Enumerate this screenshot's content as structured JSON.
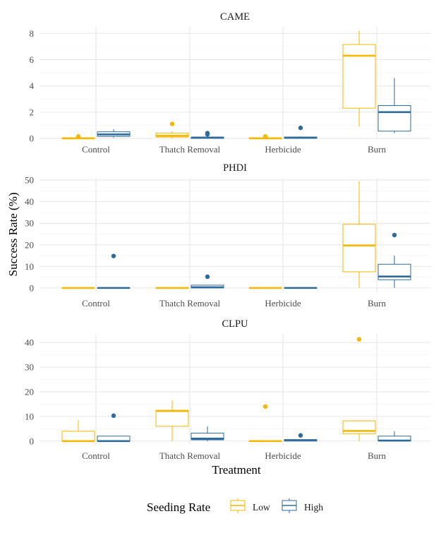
{
  "colors": {
    "low": "#F5B800",
    "high": "#2F6A99"
  },
  "axes": {
    "ylabel": "Success Rate (%)",
    "xlabel": "Treatment"
  },
  "legend": {
    "title": "Seeding Rate",
    "items": [
      {
        "key": "low",
        "label": "Low"
      },
      {
        "key": "high",
        "label": "High"
      }
    ]
  },
  "chart_data": [
    {
      "type": "boxplot",
      "title": "CAME",
      "categories": [
        "Control",
        "Thatch Removal",
        "Herbicide",
        "Burn"
      ],
      "ylim": [
        0,
        8.5
      ],
      "yticks": [
        0,
        2,
        4,
        6,
        8
      ],
      "grid": true,
      "series": [
        {
          "name": "Low",
          "boxes": [
            {
              "min": 0,
              "q1": 0,
              "median": 0,
              "q3": 0.05,
              "max": 0.05,
              "outliers": [
                0.15
              ]
            },
            {
              "min": 0,
              "q1": 0.1,
              "median": 0.2,
              "q3": 0.4,
              "max": 0.55,
              "outliers": [
                1.1
              ]
            },
            {
              "min": 0,
              "q1": 0,
              "median": 0,
              "q3": 0.05,
              "max": 0.05,
              "outliers": [
                0.15
              ]
            },
            {
              "min": 0.9,
              "q1": 2.3,
              "median": 6.3,
              "q3": 7.15,
              "max": 8.2,
              "outliers": []
            }
          ]
        },
        {
          "name": "High",
          "boxes": [
            {
              "min": 0.05,
              "q1": 0.15,
              "median": 0.3,
              "q3": 0.5,
              "max": 0.7,
              "outliers": []
            },
            {
              "min": 0,
              "q1": 0,
              "median": 0.05,
              "q3": 0.1,
              "max": 0.15,
              "outliers": [
                0.4,
                0.3
              ]
            },
            {
              "min": 0,
              "q1": 0,
              "median": 0.05,
              "q3": 0.1,
              "max": 0.15,
              "outliers": [
                0.8
              ]
            },
            {
              "min": 0.4,
              "q1": 0.55,
              "median": 2.0,
              "q3": 2.5,
              "max": 4.6,
              "outliers": []
            }
          ]
        }
      ]
    },
    {
      "type": "boxplot",
      "title": "PHDI",
      "categories": [
        "Control",
        "Thatch Removal",
        "Herbicide",
        "Burn"
      ],
      "ylim": [
        -2,
        51
      ],
      "yticks": [
        0,
        10,
        20,
        30,
        40,
        50
      ],
      "grid": true,
      "series": [
        {
          "name": "Low",
          "boxes": [
            {
              "min": 0,
              "q1": 0,
              "median": 0,
              "q3": 0,
              "max": 0,
              "outliers": []
            },
            {
              "min": 0,
              "q1": 0,
              "median": 0,
              "q3": 0,
              "max": 0,
              "outliers": []
            },
            {
              "min": 0,
              "q1": 0,
              "median": 0,
              "q3": 0,
              "max": 0,
              "outliers": []
            },
            {
              "min": 0,
              "q1": 7.5,
              "median": 19.7,
              "q3": 29.5,
              "max": 49.5,
              "outliers": []
            }
          ]
        },
        {
          "name": "High",
          "boxes": [
            {
              "min": 0,
              "q1": 0,
              "median": 0,
              "q3": 0,
              "max": 0,
              "outliers": [
                14.8
              ]
            },
            {
              "min": 0,
              "q1": 0,
              "median": 0.3,
              "q3": 1.3,
              "max": 1.3,
              "outliers": [
                5.2
              ]
            },
            {
              "min": 0,
              "q1": 0,
              "median": 0,
              "q3": 0,
              "max": 0,
              "outliers": []
            },
            {
              "min": 0,
              "q1": 3.8,
              "median": 5.3,
              "q3": 11.0,
              "max": 15.0,
              "outliers": [
                24.5
              ]
            }
          ]
        }
      ]
    },
    {
      "type": "boxplot",
      "title": "CLPU",
      "categories": [
        "Control",
        "Thatch Removal",
        "Herbicide",
        "Burn"
      ],
      "ylim": [
        -1.5,
        43.5
      ],
      "yticks": [
        0,
        10,
        20,
        30,
        40
      ],
      "grid": true,
      "series": [
        {
          "name": "Low",
          "boxes": [
            {
              "min": 0,
              "q1": 0,
              "median": 0,
              "q3": 4.0,
              "max": 8.5,
              "outliers": []
            },
            {
              "min": 0,
              "q1": 6.0,
              "median": 12.2,
              "q3": 12.5,
              "max": 16.5,
              "outliers": []
            },
            {
              "min": 0,
              "q1": 0,
              "median": 0,
              "q3": 0,
              "max": 0,
              "outliers": [
                14.0
              ]
            },
            {
              "min": 0,
              "q1": 3.0,
              "median": 4.1,
              "q3": 8.2,
              "max": 8.2,
              "outliers": [
                41.3
              ]
            }
          ]
        },
        {
          "name": "High",
          "boxes": [
            {
              "min": 0,
              "q1": 0,
              "median": 0,
              "q3": 2.0,
              "max": 2.0,
              "outliers": [
                10.3
              ]
            },
            {
              "min": 0,
              "q1": 0.5,
              "median": 1.0,
              "q3": 3.2,
              "max": 6.0,
              "outliers": []
            },
            {
              "min": 0,
              "q1": 0,
              "median": 0.3,
              "q3": 0.6,
              "max": 0.6,
              "outliers": [
                2.3
              ]
            },
            {
              "min": 0,
              "q1": 0,
              "median": 0.2,
              "q3": 2.0,
              "max": 4.0,
              "outliers": []
            }
          ]
        }
      ]
    }
  ]
}
